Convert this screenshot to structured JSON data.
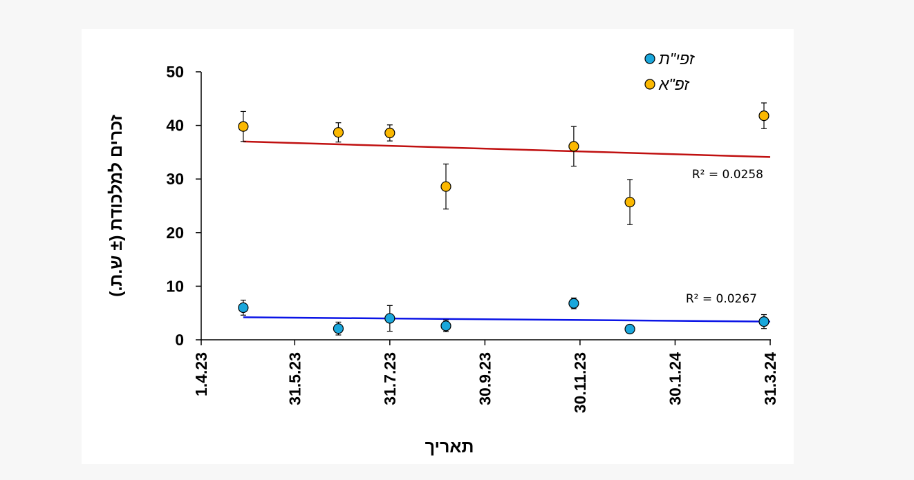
{
  "chart_data": {
    "type": "scatter",
    "title": "",
    "xlabel": "תאריך",
    "ylabel": "זכרים למלכודת (± ש.ת.)",
    "x_is_date": true,
    "xlim": [
      "2023-04-01",
      "2024-03-31"
    ],
    "ylim": [
      0,
      50
    ],
    "x_ticks": [
      {
        "date": "2023-04-01",
        "label": "1.4.23"
      },
      {
        "date": "2023-05-31",
        "label": "31.5.23"
      },
      {
        "date": "2023-07-31",
        "label": "31.7.23"
      },
      {
        "date": "2023-09-30",
        "label": "30.9.23"
      },
      {
        "date": "2023-11-30",
        "label": "30.11.23"
      },
      {
        "date": "2024-01-30",
        "label": "30.1.24"
      },
      {
        "date": "2024-03-31",
        "label": "31.3.24"
      }
    ],
    "y_ticks": [
      0,
      10,
      20,
      30,
      40,
      50
    ],
    "grid": false,
    "legend_position": "top-right",
    "series": [
      {
        "name": "זפי\"ת",
        "color": "#1aa7dc",
        "trend_color": "#0a14e6",
        "r2_label": "R² = 0.0267",
        "trendline": {
          "start": [
            "2023-04-28",
            4.2
          ],
          "end": [
            "2024-03-31",
            3.4
          ]
        },
        "points": [
          {
            "date": "2023-04-28",
            "y": 6.0,
            "err": 1.4
          },
          {
            "date": "2023-06-28",
            "y": 2.1,
            "err": 1.2
          },
          {
            "date": "2023-07-31",
            "y": 4.0,
            "err": 2.4
          },
          {
            "date": "2023-09-05",
            "y": 2.6,
            "err": 1.1
          },
          {
            "date": "2023-11-26",
            "y": 6.8,
            "err": 1.0
          },
          {
            "date": "2024-01-01",
            "y": 2.0,
            "err": 0.5
          },
          {
            "date": "2024-03-27",
            "y": 3.4,
            "err": 1.3
          }
        ]
      },
      {
        "name": "זפ\"א",
        "color": "#fbb800",
        "trend_color": "#c01010",
        "r2_label": "R² = 0.0258",
        "trendline": {
          "start": [
            "2023-04-28",
            37.0
          ],
          "end": [
            "2024-03-31",
            34.1
          ]
        },
        "points": [
          {
            "date": "2023-04-28",
            "y": 39.8,
            "err": 2.8
          },
          {
            "date": "2023-06-28",
            "y": 38.7,
            "err": 1.8
          },
          {
            "date": "2023-07-31",
            "y": 38.6,
            "err": 1.5
          },
          {
            "date": "2023-09-05",
            "y": 28.6,
            "err": 4.2
          },
          {
            "date": "2023-11-26",
            "y": 36.1,
            "err": 3.7
          },
          {
            "date": "2024-01-01",
            "y": 25.7,
            "err": 4.2
          },
          {
            "date": "2024-03-27",
            "y": 41.8,
            "err": 2.4
          }
        ]
      }
    ]
  }
}
